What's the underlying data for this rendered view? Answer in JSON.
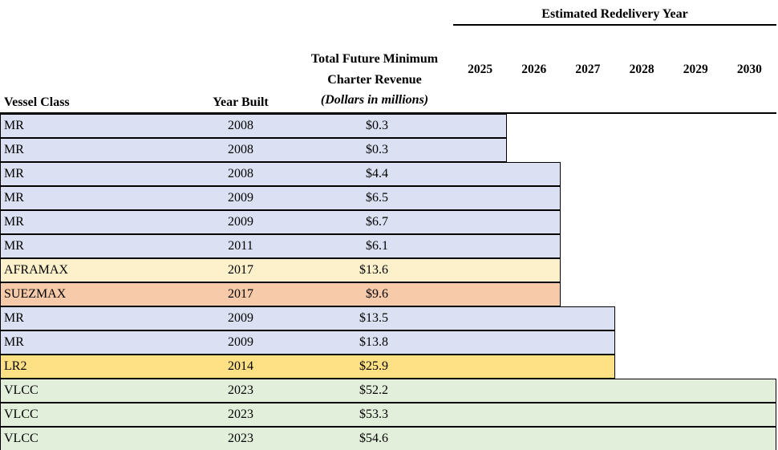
{
  "header": {
    "redelivery_title": "Estimated Redelivery Year",
    "years": [
      "2025",
      "2026",
      "2027",
      "2028",
      "2029",
      "2030"
    ],
    "vessel_class_label": "Vessel Class",
    "year_built_label": "Year Built",
    "revenue_label_lines": [
      "Total Future Minimum",
      "Charter Revenue",
      "(Dollars in millions)"
    ]
  },
  "colors": {
    "MR": "#dbe1f2",
    "AFRAMAX": "#fdf1cb",
    "SUEZMAX": "#f7caaa",
    "LR2": "#fee184",
    "VLCC": "#e2efda",
    "border": "#000000"
  },
  "rows": [
    {
      "vessel_class": "MR",
      "year_built": "2008",
      "revenue": "$0.3",
      "redelivery_year": 2025
    },
    {
      "vessel_class": "MR",
      "year_built": "2008",
      "revenue": "$0.3",
      "redelivery_year": 2025
    },
    {
      "vessel_class": "MR",
      "year_built": "2008",
      "revenue": "$4.4",
      "redelivery_year": 2026
    },
    {
      "vessel_class": "MR",
      "year_built": "2009",
      "revenue": "$6.5",
      "redelivery_year": 2026
    },
    {
      "vessel_class": "MR",
      "year_built": "2009",
      "revenue": "$6.7",
      "redelivery_year": 2026
    },
    {
      "vessel_class": "MR",
      "year_built": "2011",
      "revenue": "$6.1",
      "redelivery_year": 2026
    },
    {
      "vessel_class": "AFRAMAX",
      "year_built": "2017",
      "revenue": "$13.6",
      "redelivery_year": 2026
    },
    {
      "vessel_class": "SUEZMAX",
      "year_built": "2017",
      "revenue": "$9.6",
      "redelivery_year": 2026
    },
    {
      "vessel_class": "MR",
      "year_built": "2009",
      "revenue": "$13.5",
      "redelivery_year": 2027
    },
    {
      "vessel_class": "MR",
      "year_built": "2009",
      "revenue": "$13.8",
      "redelivery_year": 2027
    },
    {
      "vessel_class": "LR2",
      "year_built": "2014",
      "revenue": "$25.9",
      "redelivery_year": 2027
    },
    {
      "vessel_class": "VLCC",
      "year_built": "2023",
      "revenue": "$52.2",
      "redelivery_year": 2030
    },
    {
      "vessel_class": "VLCC",
      "year_built": "2023",
      "revenue": "$53.3",
      "redelivery_year": 2030
    },
    {
      "vessel_class": "VLCC",
      "year_built": "2023",
      "revenue": "$54.6",
      "redelivery_year": 2030
    }
  ],
  "chart_data": {
    "type": "table",
    "title": "Estimated Redelivery Year",
    "columns": [
      "Vessel Class",
      "Year Built",
      "Total Future Minimum Charter Revenue (Dollars in millions)",
      "Estimated Redelivery Year"
    ],
    "year_axis": [
      2025,
      2026,
      2027,
      2028,
      2029,
      2030
    ],
    "rows": [
      [
        "MR",
        2008,
        0.3,
        2025
      ],
      [
        "MR",
        2008,
        0.3,
        2025
      ],
      [
        "MR",
        2008,
        4.4,
        2026
      ],
      [
        "MR",
        2009,
        6.5,
        2026
      ],
      [
        "MR",
        2009,
        6.7,
        2026
      ],
      [
        "MR",
        2011,
        6.1,
        2026
      ],
      [
        "AFRAMAX",
        2017,
        13.6,
        2026
      ],
      [
        "SUEZMAX",
        2017,
        9.6,
        2026
      ],
      [
        "MR",
        2009,
        13.5,
        2027
      ],
      [
        "MR",
        2009,
        13.8,
        2027
      ],
      [
        "LR2",
        2014,
        25.9,
        2027
      ],
      [
        "VLCC",
        2023,
        52.2,
        2030
      ],
      [
        "VLCC",
        2023,
        53.3,
        2030
      ],
      [
        "VLCC",
        2023,
        54.6,
        2030
      ]
    ],
    "layout_hint": "Gantt-style: each row's colored bar spans from the left edge through its estimated redelivery year column"
  }
}
